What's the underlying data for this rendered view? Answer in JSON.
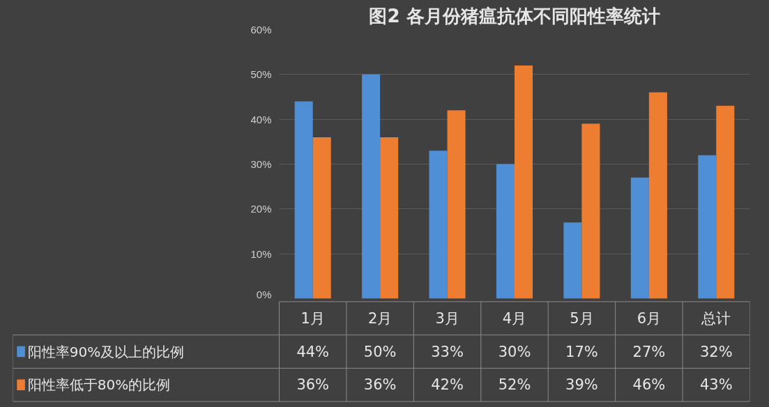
{
  "chart_data": {
    "type": "bar",
    "title": "图2 各月份猪瘟抗体不同阳性率统计",
    "categories": [
      "1月",
      "2月",
      "3月",
      "4月",
      "5月",
      "6月",
      "总计"
    ],
    "series": [
      {
        "name": "阳性率90%及以上的比例",
        "color": "#4f8fd6",
        "values": [
          44,
          50,
          33,
          30,
          17,
          27,
          32
        ],
        "value_labels": [
          "44%",
          "50%",
          "33%",
          "30%",
          "17%",
          "27%",
          "32%"
        ]
      },
      {
        "name": "阳性率低于80%的比例",
        "color": "#ed7d31",
        "values": [
          36,
          36,
          42,
          52,
          39,
          46,
          43
        ],
        "value_labels": [
          "36%",
          "36%",
          "42%",
          "52%",
          "39%",
          "46%",
          "43%"
        ]
      }
    ],
    "ylim": [
      0,
      60
    ],
    "yticks": [
      {
        "value": 0,
        "label": "0%"
      },
      {
        "value": 10,
        "label": "10%"
      },
      {
        "value": 20,
        "label": "20%"
      },
      {
        "value": 30,
        "label": "30%"
      },
      {
        "value": 40,
        "label": "40%"
      },
      {
        "value": 50,
        "label": "50%"
      },
      {
        "value": 60,
        "label": "60%"
      }
    ],
    "grid": "y",
    "legend": "bottom"
  }
}
